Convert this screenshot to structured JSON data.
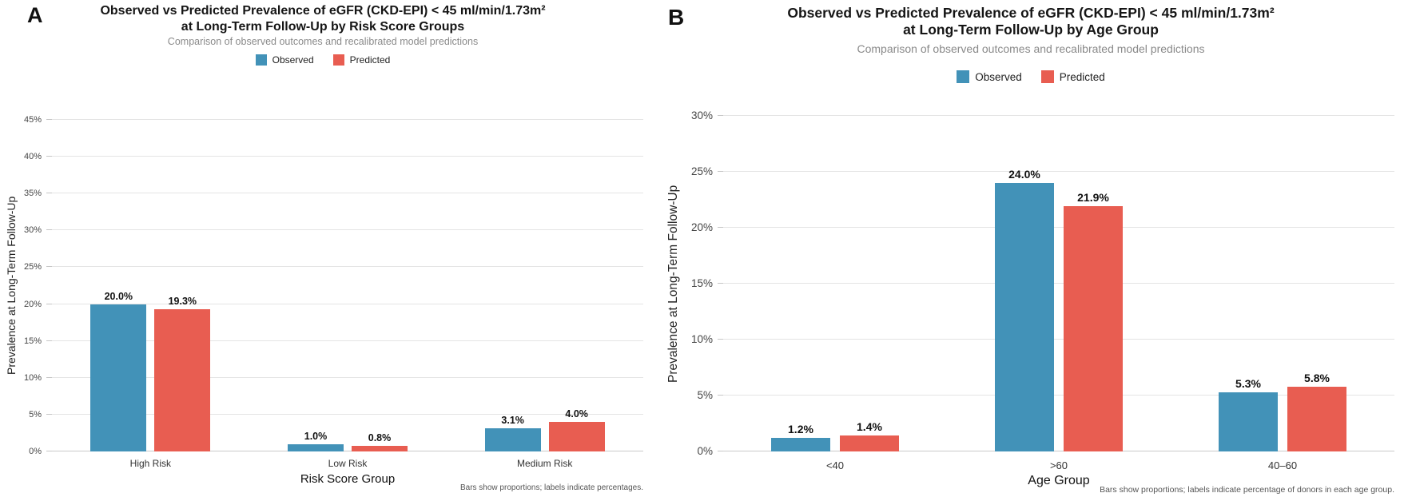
{
  "colors": {
    "observed": "#4292b8",
    "predicted": "#e85d51",
    "gridline": "#e4e4e4",
    "axis_line": "#c9c9c9"
  },
  "panels": [
    {
      "label": "A",
      "title_line1": "Observed vs Predicted Prevalence of eGFR (CKD-EPI) < 45 ml/min/1.73m²",
      "title_line2": "at Long-Term Follow-Up by Risk Score Groups",
      "subtitle": "Comparison of observed outcomes and recalibrated model predictions",
      "legend": [
        {
          "name": "Observed",
          "color": "#4292b8"
        },
        {
          "name": "Predicted",
          "color": "#e85d51"
        }
      ],
      "footnote": "Bars show proportions; labels indicate percentages.",
      "chart_data": {
        "type": "bar",
        "categories": [
          "High Risk",
          "Low Risk",
          "Medium Risk"
        ],
        "series": [
          {
            "name": "Observed",
            "values": [
              20.0,
              1.0,
              3.1
            ]
          },
          {
            "name": "Predicted",
            "values": [
              19.3,
              0.8,
              4.0
            ]
          }
        ],
        "bar_labels": [
          [
            "20.0%",
            "1.0%",
            "3.1%"
          ],
          [
            "19.3%",
            "0.8%",
            "4.0%"
          ]
        ],
        "title": "Observed vs Predicted Prevalence of eGFR (CKD-EPI) < 45 ml/min/1.73m² at Long-Term Follow-Up by Risk Score Groups",
        "xlabel": "Risk Score Group",
        "ylabel": "Prevalence at Long-Term Follow-Up",
        "ylim": [
          0,
          45
        ],
        "ytick_step": 5,
        "ytick_labels": [
          "0%",
          "5%",
          "10%",
          "15%",
          "20%",
          "25%",
          "30%",
          "35%",
          "40%",
          "45%"
        ],
        "grid": true,
        "legend_position": "top"
      }
    },
    {
      "label": "B",
      "title_line1": "Observed vs Predicted Prevalence of eGFR (CKD-EPI) < 45 ml/min/1.73m²",
      "title_line2": "at Long-Term Follow-Up by Age Group",
      "subtitle": "Comparison of observed outcomes and recalibrated model predictions",
      "legend": [
        {
          "name": "Observed",
          "color": "#4292b8"
        },
        {
          "name": "Predicted",
          "color": "#e85d51"
        }
      ],
      "footnote": "Bars show proportions; labels indicate percentage of donors in each age group.",
      "chart_data": {
        "type": "bar",
        "categories": [
          "<40",
          ">60",
          "40–60"
        ],
        "series": [
          {
            "name": "Observed",
            "values": [
              1.2,
              24.0,
              5.3
            ]
          },
          {
            "name": "Predicted",
            "values": [
              1.4,
              21.9,
              5.8
            ]
          }
        ],
        "bar_labels": [
          [
            "1.2%",
            "24.0%",
            "5.3%"
          ],
          [
            "1.4%",
            "21.9%",
            "5.8%"
          ]
        ],
        "title": "Observed vs Predicted Prevalence of eGFR (CKD-EPI) < 45 ml/min/1.73m² at Long-Term Follow-Up by Age Group",
        "xlabel": "Age Group",
        "ylabel": "Prevalence at Long-Term Follow-Up",
        "ylim": [
          0,
          30
        ],
        "ytick_step": 5,
        "ytick_labels": [
          "0%",
          "5%",
          "10%",
          "15%",
          "20%",
          "25%",
          "30%"
        ],
        "grid": true,
        "legend_position": "top"
      }
    }
  ]
}
